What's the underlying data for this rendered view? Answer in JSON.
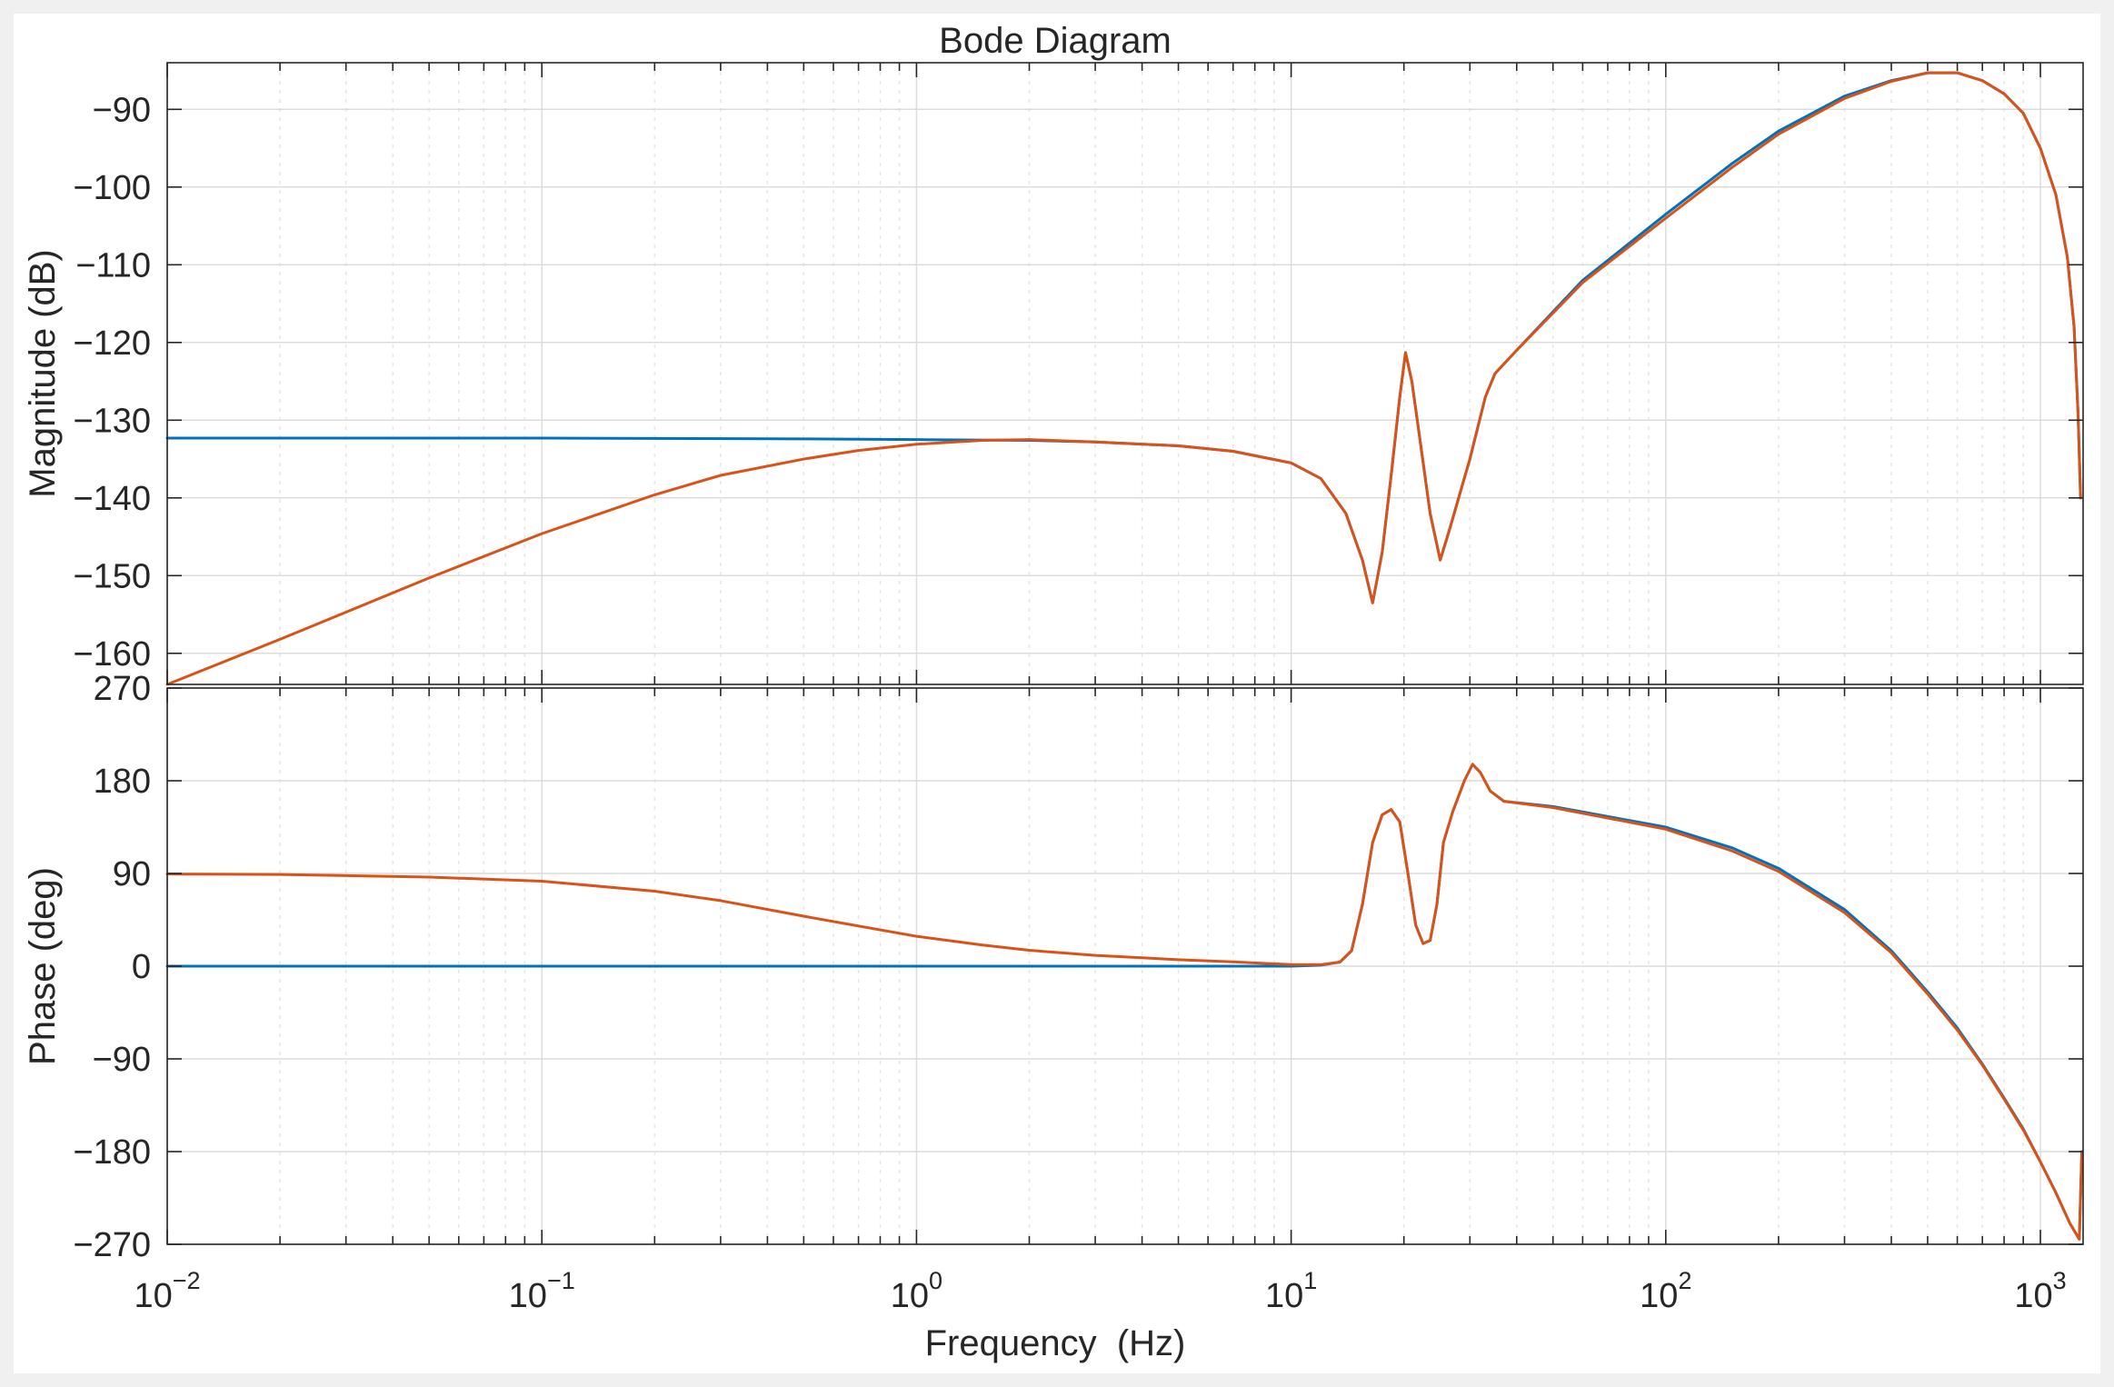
{
  "chart_data": {
    "type": "line",
    "title": "Bode Diagram",
    "xlabel": "Frequency  (Hz)",
    "xscale": "log",
    "xlim": [
      0.01,
      1300
    ],
    "x_tick_labels": [
      {
        "base": "10",
        "exp": "−2"
      },
      {
        "base": "10",
        "exp": "−1"
      },
      {
        "base": "10",
        "exp": "0"
      },
      {
        "base": "10",
        "exp": "1"
      },
      {
        "base": "10",
        "exp": "2"
      },
      {
        "base": "10",
        "exp": "3"
      }
    ],
    "grid": true,
    "colors": {
      "series1": "#0072bd",
      "series2": "#d95319"
    },
    "panels": [
      {
        "name": "magnitude",
        "ylabel": "Magnitude (dB)",
        "ylim": [
          -164,
          -84
        ],
        "yticks": [
          -90,
          -100,
          -110,
          -120,
          -130,
          -140,
          -150,
          -160
        ],
        "ytick_labels": [
          "−90",
          "−100",
          "−110",
          "−120",
          "−130",
          "−140",
          "−150",
          "−160"
        ],
        "series": [
          {
            "color": "#0072bd",
            "points": [
              [
                0.01,
                -132.3
              ],
              [
                0.1,
                -132.3
              ],
              [
                0.5,
                -132.4
              ],
              [
                1,
                -132.5
              ],
              [
                2,
                -132.6
              ],
              [
                3,
                -132.8
              ],
              [
                5,
                -133.3
              ],
              [
                7,
                -134
              ],
              [
                10,
                -135.5
              ],
              [
                12,
                -137.5
              ],
              [
                14,
                -142
              ],
              [
                15.5,
                -148
              ],
              [
                16.5,
                -153.5
              ],
              [
                17.5,
                -147
              ],
              [
                18.5,
                -137
              ],
              [
                19.5,
                -127
              ],
              [
                20.2,
                -121.3
              ],
              [
                21,
                -125
              ],
              [
                22,
                -132
              ],
              [
                23.5,
                -142
              ],
              [
                25,
                -148
              ],
              [
                26.5,
                -144
              ],
              [
                28,
                -140
              ],
              [
                30,
                -135
              ],
              [
                33,
                -127
              ],
              [
                35,
                -124
              ],
              [
                40,
                -121
              ],
              [
                60,
                -112
              ],
              [
                100,
                -103.5
              ],
              [
                150,
                -97
              ],
              [
                200,
                -92.8
              ],
              [
                300,
                -88.3
              ],
              [
                400,
                -86.3
              ],
              [
                500,
                -85.3
              ],
              [
                600,
                -85.3
              ],
              [
                700,
                -86.3
              ],
              [
                800,
                -88
              ],
              [
                900,
                -90.5
              ],
              [
                1000,
                -95
              ],
              [
                1100,
                -101
              ],
              [
                1180,
                -109
              ],
              [
                1230,
                -118
              ],
              [
                1260,
                -129
              ],
              [
                1280,
                -140
              ]
            ]
          },
          {
            "color": "#d95319",
            "points": [
              [
                0.01,
                -164
              ],
              [
                0.02,
                -158.2
              ],
              [
                0.05,
                -150.3
              ],
              [
                0.1,
                -144.6
              ],
              [
                0.2,
                -139.6
              ],
              [
                0.3,
                -137.1
              ],
              [
                0.5,
                -135
              ],
              [
                0.7,
                -133.9
              ],
              [
                1,
                -133.1
              ],
              [
                1.5,
                -132.6
              ],
              [
                2,
                -132.5
              ],
              [
                3,
                -132.8
              ],
              [
                5,
                -133.3
              ],
              [
                7,
                -134
              ],
              [
                10,
                -135.5
              ],
              [
                12,
                -137.5
              ],
              [
                14,
                -142
              ],
              [
                15.5,
                -148
              ],
              [
                16.5,
                -153.5
              ],
              [
                17.5,
                -147
              ],
              [
                18.5,
                -137
              ],
              [
                19.5,
                -127
              ],
              [
                20.2,
                -121.3
              ],
              [
                21,
                -125
              ],
              [
                22,
                -132
              ],
              [
                23.5,
                -142
              ],
              [
                25,
                -148
              ],
              [
                26.5,
                -144
              ],
              [
                28,
                -140
              ],
              [
                30,
                -135
              ],
              [
                33,
                -127
              ],
              [
                35,
                -124
              ],
              [
                40,
                -121
              ],
              [
                60,
                -112.3
              ],
              [
                100,
                -104
              ],
              [
                150,
                -97.5
              ],
              [
                200,
                -93.2
              ],
              [
                300,
                -88.6
              ],
              [
                400,
                -86.4
              ],
              [
                500,
                -85.3
              ],
              [
                600,
                -85.3
              ],
              [
                700,
                -86.3
              ],
              [
                800,
                -88
              ],
              [
                900,
                -90.5
              ],
              [
                1000,
                -95
              ],
              [
                1100,
                -101
              ],
              [
                1180,
                -109
              ],
              [
                1230,
                -118
              ],
              [
                1260,
                -129
              ],
              [
                1280,
                -140
              ]
            ]
          }
        ]
      },
      {
        "name": "phase",
        "ylabel": "Phase (deg)",
        "ylim": [
          -270,
          270
        ],
        "yticks": [
          270,
          180,
          90,
          0,
          -90,
          -180,
          -270
        ],
        "ytick_labels": [
          "270",
          "180",
          "90",
          "0",
          "−90",
          "−180",
          "−270"
        ],
        "series": [
          {
            "color": "#0072bd",
            "points": [
              [
                0.01,
                0
              ],
              [
                1,
                0
              ],
              [
                10,
                0
              ],
              [
                12,
                1
              ],
              [
                13.5,
                4
              ],
              [
                14.5,
                15
              ],
              [
                15.5,
                60
              ],
              [
                16.5,
                120
              ],
              [
                17.5,
                147
              ],
              [
                18.5,
                152
              ],
              [
                19.5,
                140
              ],
              [
                20.5,
                90
              ],
              [
                21.5,
                40
              ],
              [
                22.5,
                22
              ],
              [
                23.5,
                25
              ],
              [
                24.5,
                60
              ],
              [
                25.5,
                120
              ],
              [
                27,
                150
              ],
              [
                29,
                180
              ],
              [
                30.5,
                196
              ],
              [
                32,
                188
              ],
              [
                34,
                170
              ],
              [
                37,
                160
              ],
              [
                50,
                155
              ],
              [
                100,
                135
              ],
              [
                150,
                115
              ],
              [
                200,
                95
              ],
              [
                300,
                55
              ],
              [
                400,
                15
              ],
              [
                500,
                -25
              ],
              [
                600,
                -60
              ],
              [
                700,
                -95
              ],
              [
                800,
                -128
              ],
              [
                900,
                -158
              ],
              [
                1000,
                -190
              ],
              [
                1100,
                -220
              ],
              [
                1200,
                -250
              ],
              [
                1270,
                -265
              ],
              [
                1290,
                -180
              ]
            ]
          },
          {
            "color": "#d95319",
            "points": [
              [
                0.01,
                89.5
              ],
              [
                0.02,
                89
              ],
              [
                0.05,
                86.5
              ],
              [
                0.1,
                82.5
              ],
              [
                0.2,
                72.8
              ],
              [
                0.3,
                63.6
              ],
              [
                0.5,
                48.5
              ],
              [
                0.7,
                39
              ],
              [
                1,
                29
              ],
              [
                1.5,
                20.5
              ],
              [
                2,
                15.4
              ],
              [
                3,
                10.5
              ],
              [
                5,
                6.3
              ],
              [
                7,
                4.2
              ],
              [
                10,
                1.5
              ],
              [
                12,
                1.5
              ],
              [
                13.5,
                4
              ],
              [
                14.5,
                15
              ],
              [
                15.5,
                60
              ],
              [
                16.5,
                120
              ],
              [
                17.5,
                147
              ],
              [
                18.5,
                152
              ],
              [
                19.5,
                140
              ],
              [
                20.5,
                90
              ],
              [
                21.5,
                40
              ],
              [
                22.5,
                22
              ],
              [
                23.5,
                25
              ],
              [
                24.5,
                60
              ],
              [
                25.5,
                120
              ],
              [
                27,
                150
              ],
              [
                29,
                180
              ],
              [
                30.5,
                196
              ],
              [
                32,
                188
              ],
              [
                34,
                170
              ],
              [
                37,
                160
              ],
              [
                50,
                154
              ],
              [
                100,
                133
              ],
              [
                150,
                112
              ],
              [
                200,
                92
              ],
              [
                300,
                52
              ],
              [
                400,
                13
              ],
              [
                500,
                -27
              ],
              [
                600,
                -62
              ],
              [
                700,
                -96
              ],
              [
                800,
                -129
              ],
              [
                900,
                -159
              ],
              [
                1000,
                -190
              ],
              [
                1100,
                -220
              ],
              [
                1200,
                -250
              ],
              [
                1270,
                -265
              ],
              [
                1290,
                -180
              ]
            ]
          }
        ]
      }
    ]
  }
}
